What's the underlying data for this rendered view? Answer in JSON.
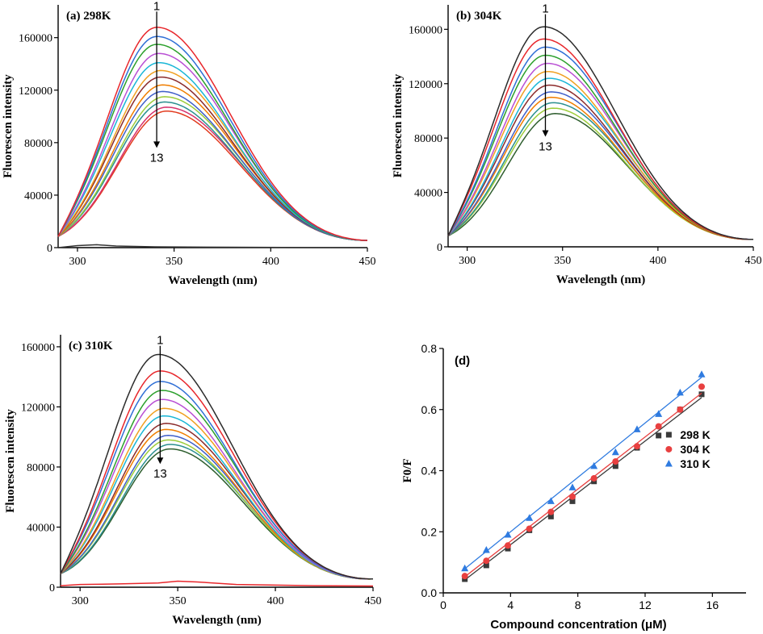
{
  "figure_title": "Fluorescence quenching spectra at three temperatures and Stern-Volmer plot",
  "chart_data": [
    {
      "type": "line",
      "id": "a",
      "panel_label": "(a) 298K",
      "xlabel": "Wavelength (nm)",
      "ylabel": "Fluorescen intensity",
      "xlim": [
        290,
        450
      ],
      "ylim": [
        0,
        185000
      ],
      "xticks": [
        300,
        350,
        400,
        450
      ],
      "yticks": [
        0,
        40000,
        80000,
        120000,
        160000
      ],
      "arrow": {
        "start_label": "1",
        "end_label": "13",
        "x": 341,
        "y_top": 186000,
        "y_bottom": 76000
      },
      "curve_model": {
        "peak_nm": [
          341,
          341,
          341,
          342,
          342,
          343,
          343,
          344,
          344,
          345,
          345,
          346,
          346
        ],
        "start_value_290nm": 8500,
        "end_value_450nm": 5500
      },
      "series": [
        {
          "name": "1",
          "peak": 168000,
          "color": "#e8262b"
        },
        {
          "name": "2",
          "peak": 161000,
          "color": "#2f6fd6"
        },
        {
          "name": "3",
          "peak": 155000,
          "color": "#2ca02c"
        },
        {
          "name": "4",
          "peak": 148000,
          "color": "#b94fd4"
        },
        {
          "name": "5",
          "peak": 141000,
          "color": "#19b6d6"
        },
        {
          "name": "6",
          "peak": 135000,
          "color": "#f0a020"
        },
        {
          "name": "7",
          "peak": 130000,
          "color": "#8b2b2b"
        },
        {
          "name": "8",
          "peak": 124000,
          "color": "#f07e00"
        },
        {
          "name": "9",
          "peak": 119000,
          "color": "#3f5fc9"
        },
        {
          "name": "10",
          "peak": 115000,
          "color": "#9ccc3a"
        },
        {
          "name": "11",
          "peak": 111000,
          "color": "#2a8f8f"
        },
        {
          "name": "12",
          "peak": 107000,
          "color": "#d7326c"
        },
        {
          "name": "13",
          "peak": 104000,
          "color": "#e23b1f"
        }
      ],
      "baseline_trace": {
        "color": "#333333",
        "x": [
          290,
          300,
          310,
          320,
          340,
          380,
          420,
          450
        ],
        "y": [
          0,
          1500,
          2200,
          1200,
          600,
          300,
          100,
          0
        ]
      }
    },
    {
      "type": "line",
      "id": "b",
      "panel_label": "(b) 304K",
      "xlabel": "Wavelength (nm)",
      "ylabel": "Fluorescen intensity",
      "xlim": [
        290,
        450
      ],
      "ylim": [
        0,
        178000
      ],
      "xticks": [
        300,
        350,
        400,
        450
      ],
      "yticks": [
        0,
        40000,
        80000,
        120000,
        160000
      ],
      "arrow": {
        "start_label": "1",
        "end_label": "13",
        "x": 341,
        "y_top": 177000,
        "y_bottom": 81000
      },
      "curve_model": {
        "peak_nm": [
          340,
          340,
          341,
          341,
          342,
          342,
          343,
          343,
          344,
          344,
          345,
          345,
          346
        ],
        "start_value_290nm": 8000,
        "end_value_450nm": 5500
      },
      "series": [
        {
          "name": "1",
          "peak": 162000,
          "color": "#2b2b2b"
        },
        {
          "name": "2",
          "peak": 153000,
          "color": "#e8262b"
        },
        {
          "name": "3",
          "peak": 147000,
          "color": "#2f6fd6"
        },
        {
          "name": "4",
          "peak": 141000,
          "color": "#2ca02c"
        },
        {
          "name": "5",
          "peak": 135000,
          "color": "#b94fd4"
        },
        {
          "name": "6",
          "peak": 129000,
          "color": "#f0a020"
        },
        {
          "name": "7",
          "peak": 124000,
          "color": "#19b6d6"
        },
        {
          "name": "8",
          "peak": 119000,
          "color": "#8b2b2b"
        },
        {
          "name": "9",
          "peak": 114000,
          "color": "#3f5fc9"
        },
        {
          "name": "10",
          "peak": 110000,
          "color": "#f07e00"
        },
        {
          "name": "11",
          "peak": 106000,
          "color": "#2a8f8f"
        },
        {
          "name": "12",
          "peak": 102000,
          "color": "#9ccc3a"
        },
        {
          "name": "13",
          "peak": 98000,
          "color": "#2e5e2e"
        }
      ]
    },
    {
      "type": "line",
      "id": "c",
      "panel_label": "(c) 310K",
      "xlabel": "Wavelength (nm)",
      "ylabel": "Fluorescen intensity",
      "xlim": [
        290,
        450
      ],
      "ylim": [
        0,
        168000
      ],
      "xticks": [
        300,
        350,
        400,
        450
      ],
      "xtick_labels": [
        "300",
        "350",
        "400",
        "450"
      ],
      "yticks": [
        0,
        40000,
        80000,
        120000,
        160000
      ],
      "arrow": {
        "start_label": "1",
        "end_label": "13",
        "x": 341,
        "y_top": 166000,
        "y_bottom": 82000
      },
      "curve_model": {
        "peak_nm": [
          340,
          341,
          341,
          342,
          342,
          343,
          343,
          344,
          344,
          345,
          345,
          346,
          346
        ],
        "start_value_290nm": 9000,
        "end_value_450nm": 5500
      },
      "series": [
        {
          "name": "1",
          "peak": 155000,
          "color": "#2b2b2b"
        },
        {
          "name": "2",
          "peak": 144000,
          "color": "#e8262b"
        },
        {
          "name": "3",
          "peak": 137000,
          "color": "#2f6fd6"
        },
        {
          "name": "4",
          "peak": 131000,
          "color": "#2ca02c"
        },
        {
          "name": "5",
          "peak": 125000,
          "color": "#b94fd4"
        },
        {
          "name": "6",
          "peak": 119000,
          "color": "#f0a020"
        },
        {
          "name": "7",
          "peak": 114000,
          "color": "#19b6d6"
        },
        {
          "name": "8",
          "peak": 109000,
          "color": "#8b2b2b"
        },
        {
          "name": "9",
          "peak": 105000,
          "color": "#f07e00"
        },
        {
          "name": "10",
          "peak": 101000,
          "color": "#3f5fc9"
        },
        {
          "name": "11",
          "peak": 98000,
          "color": "#9ccc3a"
        },
        {
          "name": "12",
          "peak": 95000,
          "color": "#2a8f8f"
        },
        {
          "name": "13",
          "peak": 92000,
          "color": "#2e5e2e"
        }
      ],
      "baseline_trace": {
        "color": "#e8262b",
        "x": [
          290,
          300,
          320,
          340,
          350,
          360,
          380,
          420,
          450
        ],
        "y": [
          1000,
          1800,
          2200,
          2800,
          4000,
          3500,
          1800,
          1000,
          800
        ]
      }
    },
    {
      "type": "scatter",
      "id": "d",
      "panel_label": "(d)",
      "xlabel": "Compound concentration (μM)",
      "ylabel": "F0/F",
      "xlim": [
        0,
        18
      ],
      "ylim": [
        0,
        0.8
      ],
      "xticks": [
        0,
        4,
        8,
        12,
        16
      ],
      "yticks": [
        0.0,
        0.2,
        0.4,
        0.6,
        0.8
      ],
      "ytick_labels": [
        "0.0",
        "0.2",
        "0.4",
        "0.6",
        "0.8"
      ],
      "x": [
        1.28,
        2.56,
        3.84,
        5.12,
        6.4,
        7.68,
        8.96,
        10.24,
        11.52,
        12.8,
        14.08,
        15.36
      ],
      "series": [
        {
          "name": "298 K",
          "marker": "square",
          "color": "#3a3a3a",
          "values": [
            0.045,
            0.09,
            0.145,
            0.205,
            0.25,
            0.3,
            0.365,
            0.415,
            0.475,
            0.515,
            0.6,
            0.65
          ],
          "fit": {
            "slope": 0.0424,
            "intercept": -0.012
          }
        },
        {
          "name": "304 K",
          "marker": "circle",
          "color": "#e84040",
          "values": [
            0.055,
            0.105,
            0.155,
            0.21,
            0.265,
            0.315,
            0.375,
            0.43,
            0.48,
            0.545,
            0.6,
            0.675
          ],
          "fit": {
            "slope": 0.0427,
            "intercept": -0.002
          }
        },
        {
          "name": "310 K",
          "marker": "triangle",
          "color": "#2f7be0",
          "values": [
            0.08,
            0.14,
            0.19,
            0.245,
            0.3,
            0.345,
            0.415,
            0.46,
            0.535,
            0.585,
            0.655,
            0.715
          ],
          "fit": {
            "slope": 0.0445,
            "intercept": 0.022
          }
        }
      ]
    }
  ]
}
